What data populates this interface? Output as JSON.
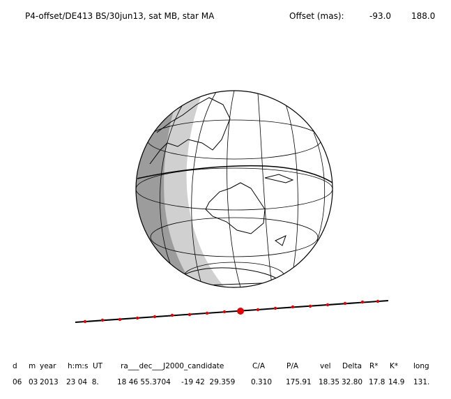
{
  "header": {
    "title": "P4-offset/DE413 BS/30jun13, sat MB, star MA",
    "offset_label": "Offset (mas):",
    "offset_ra": "-93.0",
    "offset_dec": "188.0"
  },
  "table": {
    "columns": [
      "d",
      "m",
      "year",
      "h:m:s",
      "UT",
      "ra___dec___J2000_candidate",
      "C/A",
      "P/A",
      "vel",
      "Delta",
      "R*",
      "K*",
      "long"
    ],
    "row": [
      "06",
      "03",
      "2013",
      "23 04  8.",
      "18 46 55.3704",
      "-19 42  29.359",
      "0.310",
      "175.91",
      "18.35",
      "32.80",
      "17.8",
      "14.9",
      "131."
    ]
  }
}
